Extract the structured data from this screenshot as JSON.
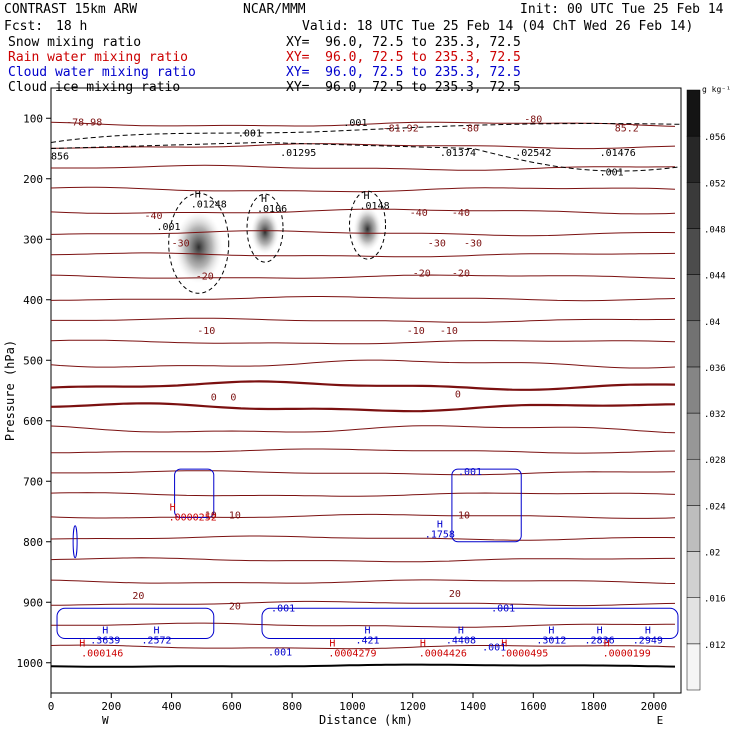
{
  "header": {
    "model": "CONTRAST 15km ARW",
    "center": "NCAR/MMM",
    "init": "Init: 00 UTC Tue 25 Feb 14",
    "fcst_label": "Fcst:",
    "fcst_value": "18 h",
    "valid": "Valid: 18 UTC Tue 25 Feb 14 (04 ChT Wed 26 Feb 14)"
  },
  "fields": [
    {
      "name": "Snow mixing ratio",
      "xy": "XY=  96.0, 72.5 to 235.3, 72.5",
      "color": "#000000"
    },
    {
      "name": "Rain water mixing ratio",
      "xy": "XY=  96.0, 72.5 to 235.3, 72.5",
      "color": "#cc0000"
    },
    {
      "name": "Cloud water mixing ratio",
      "xy": "XY=  96.0, 72.5 to 235.3, 72.5",
      "color": "#0000cc"
    },
    {
      "name": "Cloud ice mixing ratio",
      "xy": "XY=  96.0, 72.5 to 235.3, 72.5",
      "color": "#000000"
    }
  ],
  "chart_data": {
    "type": "heatmap",
    "xlabel": "Distance (km)",
    "ylabel": "Pressure (hPa)",
    "xlim": [
      0,
      2090
    ],
    "ylim": [
      1050,
      50
    ],
    "x_ticks": [
      0,
      200,
      400,
      600,
      800,
      1000,
      1200,
      1400,
      1600,
      1800,
      2000
    ],
    "y_ticks": [
      100,
      200,
      300,
      400,
      500,
      600,
      700,
      800,
      900,
      1000
    ],
    "x_end_labels": {
      "left": "W",
      "right": "E"
    },
    "colorbar": {
      "unit": "g kg⁻¹",
      "ticks": [
        ".012",
        ".016",
        ".02",
        ".024",
        ".028",
        ".032",
        ".036",
        ".04",
        ".044",
        ".048",
        ".052",
        ".056"
      ],
      "range": [
        0.008,
        0.06
      ]
    },
    "snow_cores": [
      {
        "x": 490,
        "p": 300,
        "label": ".01248"
      },
      {
        "x": 710,
        "p": 275,
        "label": ".0106"
      },
      {
        "x": 1050,
        "p": 270,
        "label": ".0148"
      }
    ],
    "temperature_contours": {
      "color": "#7b1010",
      "labels": [
        {
          "text": "-78.98",
          "x": 110,
          "p": 105
        },
        {
          "text": "-81.92",
          "x": 1160,
          "p": 115
        },
        {
          "text": "-80",
          "x": 1600,
          "p": 100
        },
        {
          "text": "-80",
          "x": 1390,
          "p": 115
        },
        {
          "text": "85.2",
          "x": 1910,
          "p": 115
        },
        {
          "text": "-40",
          "x": 340,
          "p": 260
        },
        {
          "text": "-40",
          "x": 1220,
          "p": 255
        },
        {
          "text": "-40",
          "x": 1360,
          "p": 255
        },
        {
          "text": "-30",
          "x": 430,
          "p": 305
        },
        {
          "text": "-30",
          "x": 1280,
          "p": 305
        },
        {
          "text": "-30",
          "x": 1400,
          "p": 305
        },
        {
          "text": "-20",
          "x": 510,
          "p": 360
        },
        {
          "text": "-20",
          "x": 1230,
          "p": 355
        },
        {
          "text": "-20",
          "x": 1360,
          "p": 355
        },
        {
          "text": "-10",
          "x": 515,
          "p": 450
        },
        {
          "text": "-10",
          "x": 1210,
          "p": 450
        },
        {
          "text": "-10",
          "x": 1320,
          "p": 450
        },
        {
          "text": "0",
          "x": 540,
          "p": 560
        },
        {
          "text": "0",
          "x": 605,
          "p": 560
        },
        {
          "text": "0",
          "x": 1350,
          "p": 555
        },
        {
          "text": "10",
          "x": 530,
          "p": 755
        },
        {
          "text": "10",
          "x": 610,
          "p": 755
        },
        {
          "text": "10",
          "x": 1370,
          "p": 755
        },
        {
          "text": "20",
          "x": 290,
          "p": 888
        },
        {
          "text": "20",
          "x": 610,
          "p": 905
        },
        {
          "text": "20",
          "x": 1340,
          "p": 885
        }
      ]
    },
    "cloud_water_maxima": [
      {
        "x": 180,
        "p": 968,
        "label": ".3639"
      },
      {
        "x": 350,
        "p": 968,
        "label": ".2572"
      },
      {
        "x": 1050,
        "p": 968,
        "label": ".421"
      },
      {
        "x": 1360,
        "p": 968,
        "label": ".4408"
      },
      {
        "x": 1660,
        "p": 968,
        "label": ".3012"
      },
      {
        "x": 1820,
        "p": 968,
        "label": ".2836"
      },
      {
        "x": 1980,
        "p": 968,
        "label": ".2949"
      },
      {
        "x": 1290,
        "p": 793,
        "label": ".1758"
      }
    ],
    "rain_maxima": [
      {
        "x": 170,
        "p": 990,
        "label": ".000146"
      },
      {
        "x": 1000,
        "p": 990,
        "label": ".0004279"
      },
      {
        "x": 1300,
        "p": 990,
        "label": ".0004426"
      },
      {
        "x": 1570,
        "p": 990,
        "label": ".0000495"
      },
      {
        "x": 1910,
        "p": 990,
        "label": ".0000199"
      },
      {
        "x": 470,
        "p": 765,
        "label": ".0000252"
      }
    ],
    "cloud_ice_labels": [
      {
        "x": 660,
        "p": 130,
        "label": ".001"
      },
      {
        "x": 1010,
        "p": 113,
        "label": ".001"
      },
      {
        "x": 1860,
        "p": 195,
        "label": ".001"
      },
      {
        "x": 390,
        "p": 285,
        "label": ".001"
      },
      {
        "x": 820,
        "p": 162,
        "label": ".01295"
      },
      {
        "x": 1350,
        "p": 162,
        "label": ".01374"
      },
      {
        "x": 1600,
        "p": 162,
        "label": ".02542"
      },
      {
        "x": 1880,
        "p": 162,
        "label": ".01476"
      },
      {
        "x": 30,
        "p": 168,
        "label": "856"
      }
    ],
    "cloud_water_small_labels": [
      {
        "x": 1390,
        "p": 690,
        "label": ".001"
      },
      {
        "x": 770,
        "p": 915,
        "label": ".001"
      },
      {
        "x": 1500,
        "p": 915,
        "label": ".001"
      },
      {
        "x": 760,
        "p": 988,
        "label": ".001"
      },
      {
        "x": 1470,
        "p": 980,
        "label": ".001"
      }
    ]
  }
}
